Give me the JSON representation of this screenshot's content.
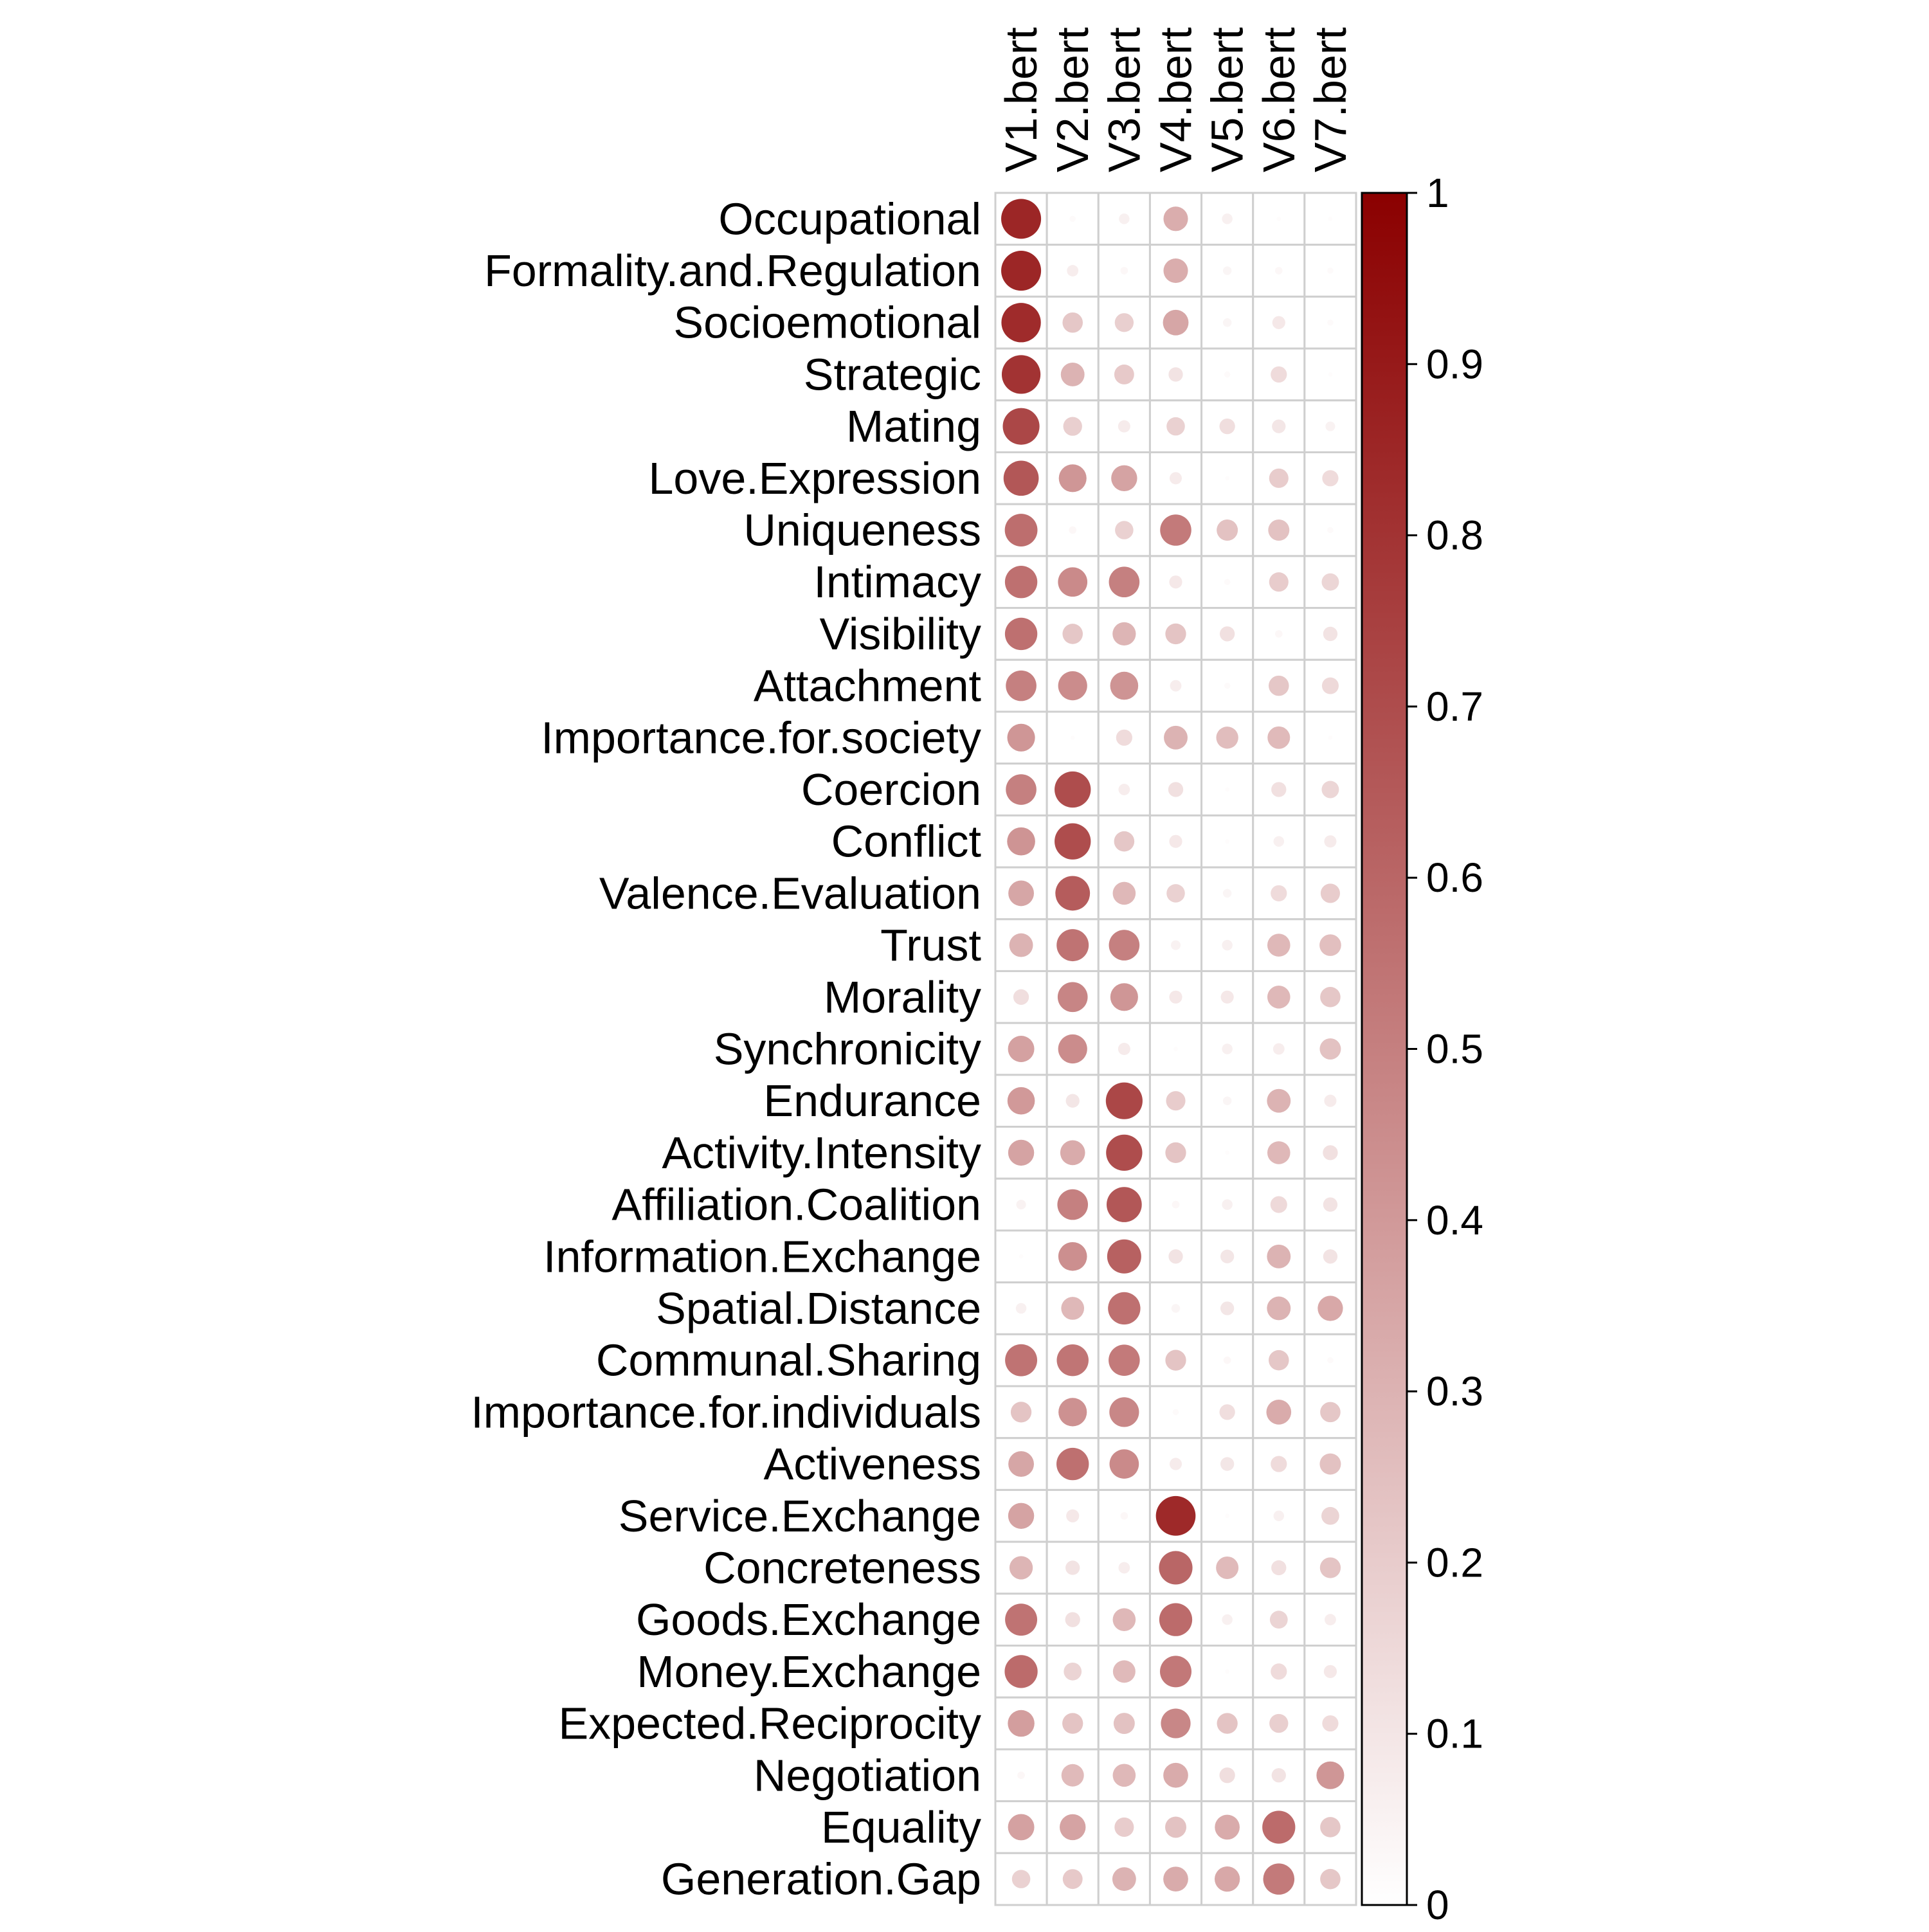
{
  "chart_data": {
    "type": "correlation-plot",
    "columns": [
      "V1.bert",
      "V2.bert",
      "V3.bert",
      "V4.bert",
      "V5.bert",
      "V6.bert",
      "V7.bert"
    ],
    "rows": [
      "Occupational",
      "Formality.and.Regulation",
      "Socioemotional",
      "Strategic",
      "Mating",
      "Love.Expression",
      "Uniqueness",
      "Intimacy",
      "Visibility",
      "Attachment",
      "Importance.for.society",
      "Coercion",
      "Conflict",
      "Valence.Evaluation",
      "Trust",
      "Morality",
      "Synchronicity",
      "Endurance",
      "Activity.Intensity",
      "Affiliation.Coalition",
      "Information.Exchange",
      "Spatial.Distance",
      "Communal.Sharing",
      "Importance.for.individuals",
      "Activeness",
      "Service.Exchange",
      "Concreteness",
      "Goods.Exchange",
      "Money.Exchange",
      "Expected.Reciprocity",
      "Negotiation",
      "Equality",
      "Generation.Gap"
    ],
    "values": [
      [
        0.85,
        0.02,
        0.06,
        0.32,
        0.06,
        0.01,
        0.01
      ],
      [
        0.85,
        0.07,
        0.03,
        0.32,
        0.04,
        0.03,
        0.02
      ],
      [
        0.83,
        0.22,
        0.19,
        0.35,
        0.04,
        0.09,
        0.02
      ],
      [
        0.8,
        0.3,
        0.21,
        0.11,
        0.02,
        0.14,
        0.01
      ],
      [
        0.72,
        0.19,
        0.08,
        0.18,
        0.13,
        0.1,
        0.05
      ],
      [
        0.66,
        0.41,
        0.36,
        0.08,
        0.01,
        0.2,
        0.14
      ],
      [
        0.57,
        0.03,
        0.18,
        0.52,
        0.24,
        0.24,
        0.02
      ],
      [
        0.56,
        0.46,
        0.5,
        0.09,
        0.02,
        0.2,
        0.16
      ],
      [
        0.56,
        0.22,
        0.29,
        0.23,
        0.12,
        0.03,
        0.11
      ],
      [
        0.5,
        0.45,
        0.42,
        0.07,
        0.02,
        0.22,
        0.15
      ],
      [
        0.41,
        0.01,
        0.14,
        0.3,
        0.26,
        0.27,
        0.01
      ],
      [
        0.5,
        0.7,
        0.07,
        0.12,
        0.01,
        0.12,
        0.16
      ],
      [
        0.42,
        0.7,
        0.22,
        0.09,
        0.01,
        0.06,
        0.08
      ],
      [
        0.35,
        0.64,
        0.28,
        0.18,
        0.04,
        0.14,
        0.2
      ],
      [
        0.3,
        0.55,
        0.5,
        0.05,
        0.06,
        0.28,
        0.25
      ],
      [
        0.13,
        0.48,
        0.41,
        0.09,
        0.09,
        0.28,
        0.22
      ],
      [
        0.37,
        0.45,
        0.08,
        0.01,
        0.06,
        0.07,
        0.24
      ],
      [
        0.4,
        0.1,
        0.72,
        0.2,
        0.04,
        0.3,
        0.08
      ],
      [
        0.36,
        0.33,
        0.7,
        0.23,
        0.01,
        0.28,
        0.12
      ],
      [
        0.05,
        0.5,
        0.66,
        0.03,
        0.06,
        0.15,
        0.11
      ],
      [
        0.01,
        0.44,
        0.62,
        0.11,
        0.1,
        0.3,
        0.11
      ],
      [
        0.06,
        0.28,
        0.56,
        0.04,
        0.1,
        0.3,
        0.34
      ],
      [
        0.55,
        0.54,
        0.52,
        0.23,
        0.03,
        0.22,
        0.02
      ],
      [
        0.23,
        0.43,
        0.47,
        0.02,
        0.13,
        0.33,
        0.22
      ],
      [
        0.35,
        0.56,
        0.46,
        0.08,
        0.1,
        0.14,
        0.24
      ],
      [
        0.36,
        0.09,
        0.03,
        0.84,
        0.01,
        0.06,
        0.17
      ],
      [
        0.29,
        0.11,
        0.07,
        0.6,
        0.27,
        0.12,
        0.23
      ],
      [
        0.55,
        0.12,
        0.28,
        0.58,
        0.06,
        0.17,
        0.07
      ],
      [
        0.58,
        0.17,
        0.27,
        0.53,
        0.01,
        0.14,
        0.09
      ],
      [
        0.38,
        0.23,
        0.24,
        0.47,
        0.23,
        0.19,
        0.14
      ],
      [
        0.03,
        0.27,
        0.28,
        0.33,
        0.13,
        0.11,
        0.41
      ],
      [
        0.37,
        0.36,
        0.2,
        0.24,
        0.33,
        0.58,
        0.22
      ],
      [
        0.18,
        0.21,
        0.3,
        0.33,
        0.34,
        0.52,
        0.22
      ]
    ],
    "colorbar": {
      "min": 0,
      "max": 1,
      "ticks": [
        "1",
        "0.9",
        "0.8",
        "0.7",
        "0.6",
        "0.5",
        "0.4",
        "0.3",
        "0.2",
        "0.1",
        "0"
      ],
      "tick_values": [
        1,
        0.9,
        0.8,
        0.7,
        0.6,
        0.5,
        0.4,
        0.3,
        0.2,
        0.1,
        0
      ],
      "low_color": "#ffffff",
      "high_color": "#8b0000"
    },
    "grid": true,
    "legend_position": "right",
    "grid_color": "#cfcfcf"
  }
}
